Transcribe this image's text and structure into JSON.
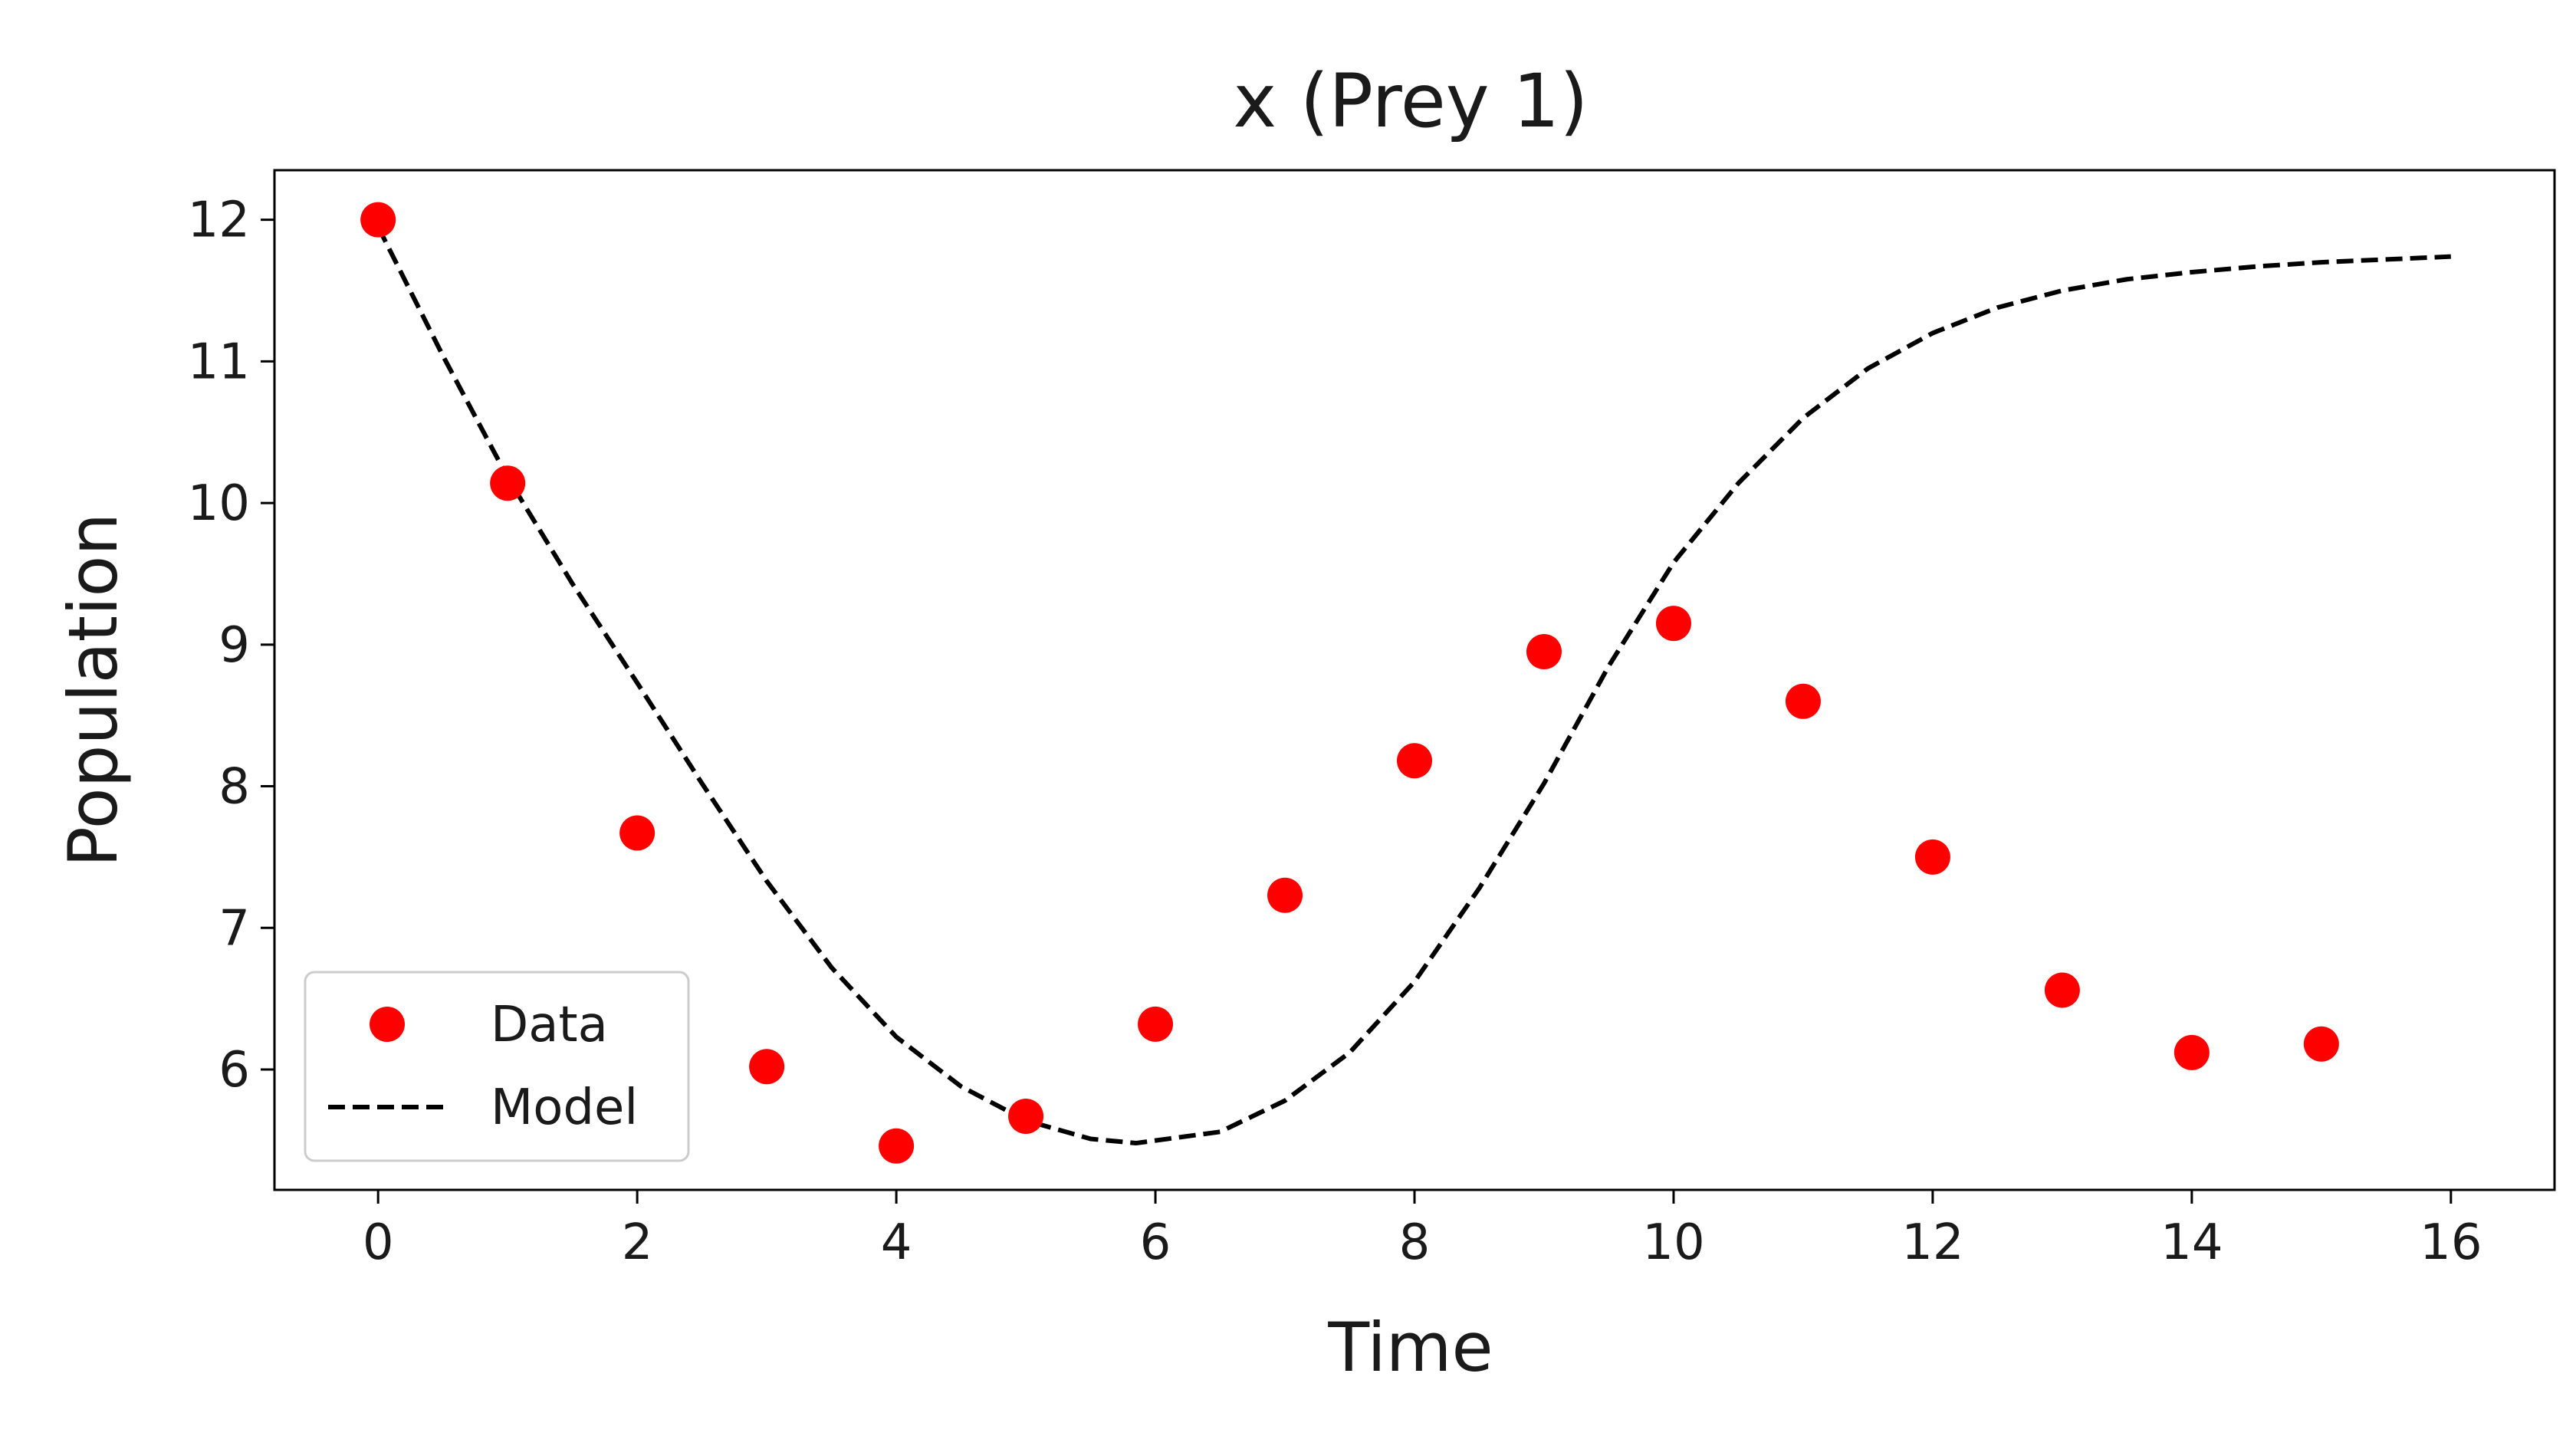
{
  "chart_data": {
    "type": "line",
    "title": "x (Prey 1)",
    "xlabel": "Time",
    "ylabel": "Population",
    "xlim": [
      -0.8,
      16.8
    ],
    "ylim": [
      5.15,
      12.35
    ],
    "xticks": [
      0,
      2,
      4,
      6,
      8,
      10,
      12,
      14,
      16
    ],
    "yticks": [
      6,
      7,
      8,
      9,
      10,
      11,
      12
    ],
    "grid": false,
    "legend_position": "lower-left",
    "series": [
      {
        "name": "Data",
        "kind": "scatter",
        "color": "#ff0000",
        "x": [
          0,
          1,
          2,
          3,
          4,
          5,
          6,
          7,
          8,
          9,
          10,
          11,
          12,
          13,
          14,
          15
        ],
        "y": [
          12.0,
          10.14,
          7.67,
          6.02,
          5.46,
          5.67,
          6.32,
          7.23,
          8.18,
          8.95,
          9.15,
          8.6,
          7.5,
          6.56,
          6.12,
          6.18
        ]
      },
      {
        "name": "Model",
        "kind": "line",
        "style": "dashed",
        "color": "#000000",
        "x": [
          0,
          0.5,
          1,
          1.5,
          2,
          2.5,
          3,
          3.5,
          4,
          4.5,
          5,
          5.5,
          5.85,
          6.5,
          7,
          7.5,
          8,
          8.5,
          9,
          9.5,
          10,
          10.5,
          11,
          11.5,
          12,
          12.5,
          13,
          13.5,
          14,
          14.5,
          15,
          15.5,
          16
        ],
        "y": [
          11.95,
          11.04,
          10.18,
          9.43,
          8.73,
          8.02,
          7.33,
          6.72,
          6.23,
          5.88,
          5.64,
          5.51,
          5.48,
          5.56,
          5.78,
          6.12,
          6.62,
          7.28,
          8.02,
          8.85,
          9.58,
          10.14,
          10.6,
          10.95,
          11.2,
          11.38,
          11.5,
          11.58,
          11.63,
          11.67,
          11.7,
          11.72,
          11.74
        ]
      }
    ]
  }
}
